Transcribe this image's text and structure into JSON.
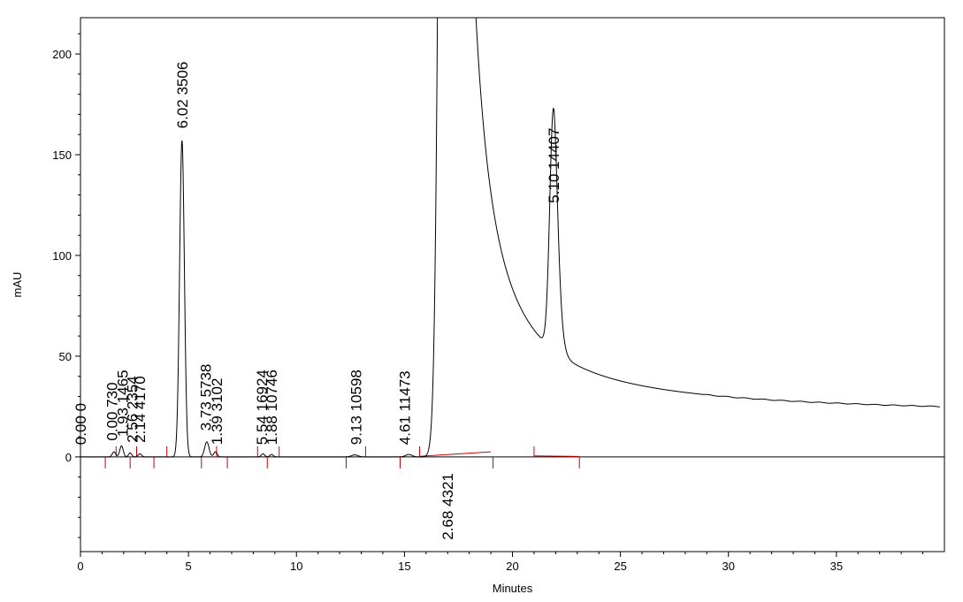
{
  "chart_data": {
    "type": "line",
    "title": "",
    "xlabel": "Minutes",
    "ylabel": "mAU",
    "xlim": [
      0,
      40
    ],
    "ylim": [
      -47,
      218
    ],
    "grid": false,
    "x_ticks": [
      "0",
      "5",
      "10",
      "15",
      "20",
      "25",
      "30",
      "35"
    ],
    "y_ticks": [
      "0",
      "50",
      "100",
      "150",
      "200"
    ],
    "colors": {
      "trace": "#000000",
      "baseline": "#cc0000"
    },
    "series": [
      {
        "peaks": [
          {
            "rt": 1.55,
            "height": 2.5,
            "width": 0.08
          },
          {
            "rt": 1.9,
            "height": 5.5,
            "width": 0.08
          },
          {
            "rt": 2.3,
            "height": 2.0,
            "width": 0.07
          },
          {
            "rt": 2.75,
            "height": 1.5,
            "width": 0.08
          },
          {
            "rt": 4.7,
            "height": 157,
            "width": 0.11
          },
          {
            "rt": 5.85,
            "height": 7.5,
            "width": 0.1
          },
          {
            "rt": 6.25,
            "height": 2.5,
            "width": 0.08
          },
          {
            "rt": 8.45,
            "height": 1.5,
            "width": 0.08
          },
          {
            "rt": 8.85,
            "height": 1.2,
            "width": 0.08
          },
          {
            "rt": 12.7,
            "height": 1.0,
            "width": 0.15
          },
          {
            "rt": 15.2,
            "height": 1.2,
            "width": 0.15
          },
          {
            "rt": 17.0,
            "height": 1150,
            "width": 0.26,
            "tail": 0.35
          },
          {
            "rt": 21.9,
            "height": 120,
            "width": 0.17,
            "tail": 0.1
          }
        ]
      }
    ],
    "baseline_segments": [
      [
        [
          15.7,
          0.3
        ],
        [
          19.0,
          2.5
        ]
      ],
      [
        [
          21.0,
          0.5
        ],
        [
          23.1,
          0.2
        ]
      ]
    ],
    "baseline_ticks": [
      1.15,
      1.65,
      2.3,
      2.6,
      3.4,
      4.0,
      5.6,
      6.3,
      6.8,
      8.2,
      8.65,
      9.2,
      12.3,
      13.2,
      14.8,
      15.7,
      19.1,
      21.0,
      23.1
    ],
    "annotations": [
      {
        "x": 0.0,
        "y": 6,
        "text": "0.00  0"
      },
      {
        "x": 1.45,
        "y": 8,
        "text": "0.00  730"
      },
      {
        "x": 1.95,
        "y": 10,
        "text": "1.93  1465"
      },
      {
        "x": 2.4,
        "y": 7,
        "text": "2.56  2354"
      },
      {
        "x": 2.75,
        "y": 7,
        "text": "2.14  4170"
      },
      {
        "x": 4.7,
        "y": 163,
        "text": "6.02  3506"
      },
      {
        "x": 5.8,
        "y": 13,
        "text": "3.73  5738"
      },
      {
        "x": 6.3,
        "y": 6,
        "text": "1.39  3102"
      },
      {
        "x": 8.4,
        "y": 6,
        "text": "5.54  16924"
      },
      {
        "x": 8.85,
        "y": 6,
        "text": "1.88  10746"
      },
      {
        "x": 12.75,
        "y": 6,
        "text": "9.13  10598"
      },
      {
        "x": 15.0,
        "y": 6,
        "text": "4.61  11473"
      },
      {
        "x": 17.0,
        "y": -8,
        "text": "2.68  4321",
        "below": true
      },
      {
        "x": 21.9,
        "y": 126,
        "text": "5.10  14407"
      }
    ]
  }
}
